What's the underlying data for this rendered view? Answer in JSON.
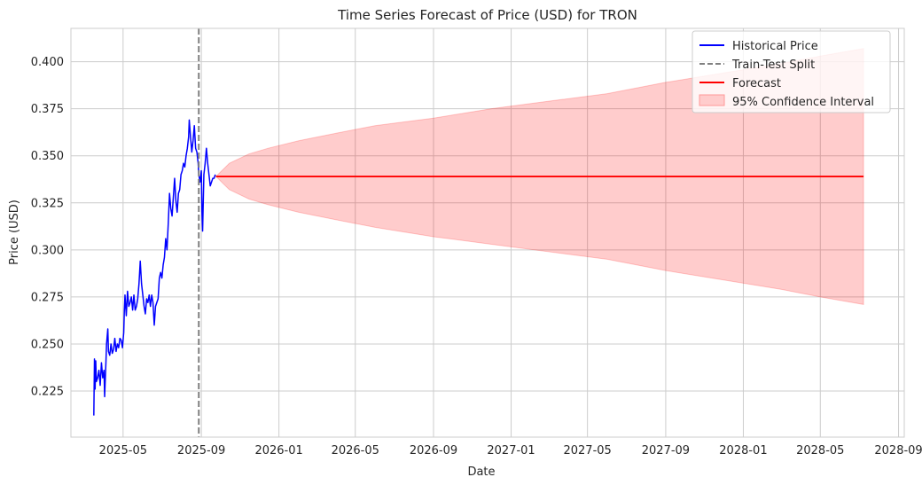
{
  "chart_data": {
    "type": "line",
    "title": "Time Series Forecast of Price (USD) for TRON",
    "xlabel": "Date",
    "ylabel": "Price (USD)",
    "grid": true,
    "legend_position": "top-right",
    "xlim": [
      "2025-02-08",
      "2028-09-10"
    ],
    "ylim": [
      0.2005,
      0.4177
    ],
    "x_ticks": [
      "2025-05-01",
      "2025-09-01",
      "2026-01-01",
      "2026-05-01",
      "2026-09-01",
      "2027-01-01",
      "2027-05-01",
      "2027-09-01",
      "2028-01-01",
      "2028-05-01",
      "2028-09-01"
    ],
    "x_tick_labels": [
      "2025-05",
      "2025-09",
      "2026-01",
      "2026-05",
      "2026-09",
      "2027-01",
      "2027-05",
      "2027-09",
      "2028-01",
      "2028-05",
      "2028-09"
    ],
    "y_ticks": [
      0.225,
      0.25,
      0.275,
      0.3,
      0.325,
      0.35,
      0.375,
      0.4
    ],
    "y_tick_labels": [
      "0.225",
      "0.250",
      "0.275",
      "0.300",
      "0.325",
      "0.350",
      "0.375",
      "0.400"
    ],
    "train_test_split": "2025-08-28",
    "series": [
      {
        "name": "Historical Price",
        "color": "#0000ff",
        "style": "solid",
        "points": [
          [
            "2025-03-16",
            0.212
          ],
          [
            "2025-03-17",
            0.242
          ],
          [
            "2025-03-18",
            0.226
          ],
          [
            "2025-03-19",
            0.241
          ],
          [
            "2025-03-20",
            0.23
          ],
          [
            "2025-03-22",
            0.232
          ],
          [
            "2025-03-24",
            0.236
          ],
          [
            "2025-03-26",
            0.228
          ],
          [
            "2025-03-28",
            0.24
          ],
          [
            "2025-03-30",
            0.232
          ],
          [
            "2025-04-01",
            0.236
          ],
          [
            "2025-04-02",
            0.222
          ],
          [
            "2025-04-04",
            0.24
          ],
          [
            "2025-04-05",
            0.25
          ],
          [
            "2025-04-07",
            0.258
          ],
          [
            "2025-04-08",
            0.246
          ],
          [
            "2025-04-10",
            0.244
          ],
          [
            "2025-04-12",
            0.25
          ],
          [
            "2025-04-14",
            0.245
          ],
          [
            "2025-04-16",
            0.247
          ],
          [
            "2025-04-18",
            0.253
          ],
          [
            "2025-04-20",
            0.246
          ],
          [
            "2025-04-22",
            0.25
          ],
          [
            "2025-04-24",
            0.248
          ],
          [
            "2025-04-26",
            0.253
          ],
          [
            "2025-04-28",
            0.252
          ],
          [
            "2025-04-30",
            0.248
          ],
          [
            "2025-05-02",
            0.256
          ],
          [
            "2025-05-03",
            0.268
          ],
          [
            "2025-05-04",
            0.276
          ],
          [
            "2025-05-06",
            0.265
          ],
          [
            "2025-05-08",
            0.278
          ],
          [
            "2025-05-10",
            0.27
          ],
          [
            "2025-05-12",
            0.272
          ],
          [
            "2025-05-14",
            0.275
          ],
          [
            "2025-05-16",
            0.268
          ],
          [
            "2025-05-18",
            0.276
          ],
          [
            "2025-05-20",
            0.268
          ],
          [
            "2025-05-22",
            0.27
          ],
          [
            "2025-05-24",
            0.274
          ],
          [
            "2025-05-26",
            0.282
          ],
          [
            "2025-05-28",
            0.294
          ],
          [
            "2025-05-30",
            0.282
          ],
          [
            "2025-06-01",
            0.276
          ],
          [
            "2025-06-03",
            0.27
          ],
          [
            "2025-06-05",
            0.266
          ],
          [
            "2025-06-07",
            0.274
          ],
          [
            "2025-06-09",
            0.272
          ],
          [
            "2025-06-11",
            0.276
          ],
          [
            "2025-06-13",
            0.27
          ],
          [
            "2025-06-15",
            0.276
          ],
          [
            "2025-06-17",
            0.272
          ],
          [
            "2025-06-19",
            0.26
          ],
          [
            "2025-06-21",
            0.27
          ],
          [
            "2025-06-23",
            0.272
          ],
          [
            "2025-06-25",
            0.274
          ],
          [
            "2025-06-27",
            0.285
          ],
          [
            "2025-06-29",
            0.288
          ],
          [
            "2025-07-01",
            0.285
          ],
          [
            "2025-07-03",
            0.292
          ],
          [
            "2025-07-05",
            0.296
          ],
          [
            "2025-07-07",
            0.306
          ],
          [
            "2025-07-09",
            0.3
          ],
          [
            "2025-07-11",
            0.314
          ],
          [
            "2025-07-13",
            0.33
          ],
          [
            "2025-07-15",
            0.322
          ],
          [
            "2025-07-17",
            0.318
          ],
          [
            "2025-07-19",
            0.328
          ],
          [
            "2025-07-21",
            0.338
          ],
          [
            "2025-07-23",
            0.326
          ],
          [
            "2025-07-25",
            0.32
          ],
          [
            "2025-07-27",
            0.33
          ],
          [
            "2025-07-29",
            0.332
          ],
          [
            "2025-07-31",
            0.34
          ],
          [
            "2025-08-02",
            0.342
          ],
          [
            "2025-08-04",
            0.346
          ],
          [
            "2025-08-06",
            0.344
          ],
          [
            "2025-08-08",
            0.35
          ],
          [
            "2025-08-10",
            0.354
          ],
          [
            "2025-08-12",
            0.36
          ],
          [
            "2025-08-13",
            0.369
          ],
          [
            "2025-08-15",
            0.36
          ],
          [
            "2025-08-17",
            0.352
          ],
          [
            "2025-08-19",
            0.358
          ],
          [
            "2025-08-21",
            0.366
          ],
          [
            "2025-08-23",
            0.354
          ],
          [
            "2025-08-25",
            0.352
          ],
          [
            "2025-08-27",
            0.346
          ],
          [
            "2025-08-28",
            0.34
          ],
          [
            "2025-08-30",
            0.336
          ],
          [
            "2025-09-01",
            0.342
          ],
          [
            "2025-09-02",
            0.32
          ],
          [
            "2025-09-03",
            0.31
          ],
          [
            "2025-09-05",
            0.34
          ],
          [
            "2025-09-07",
            0.346
          ],
          [
            "2025-09-09",
            0.354
          ],
          [
            "2025-09-11",
            0.346
          ],
          [
            "2025-09-13",
            0.34
          ],
          [
            "2025-09-15",
            0.334
          ],
          [
            "2025-09-17",
            0.336
          ],
          [
            "2025-09-19",
            0.338
          ],
          [
            "2025-09-21",
            0.338
          ],
          [
            "2025-09-23",
            0.34
          ]
        ]
      },
      {
        "name": "Train-Test Split",
        "color": "#808080",
        "style": "dashed"
      },
      {
        "name": "Forecast",
        "color": "#ff0000",
        "style": "solid",
        "start": "2025-09-24",
        "end": "2028-07-08",
        "value": 0.339
      },
      {
        "name": "95% Confidence Interval",
        "color": "#ffcccc",
        "style": "fill",
        "band": [
          [
            "2025-09-24",
            0.339,
            0.339
          ],
          [
            "2025-10-15",
            0.332,
            0.346
          ],
          [
            "2025-11-15",
            0.327,
            0.351
          ],
          [
            "2025-12-15",
            0.324,
            0.354
          ],
          [
            "2026-02-01",
            0.32,
            0.358
          ],
          [
            "2026-04-01",
            0.316,
            0.362
          ],
          [
            "2026-06-01",
            0.312,
            0.366
          ],
          [
            "2026-09-01",
            0.307,
            0.37
          ],
          [
            "2026-12-01",
            0.303,
            0.375
          ],
          [
            "2027-03-01",
            0.299,
            0.379
          ],
          [
            "2027-06-01",
            0.295,
            0.383
          ],
          [
            "2027-09-01",
            0.289,
            0.389
          ],
          [
            "2027-12-01",
            0.284,
            0.394
          ],
          [
            "2028-03-01",
            0.279,
            0.399
          ],
          [
            "2028-05-01",
            0.275,
            0.403
          ],
          [
            "2028-07-08",
            0.271,
            0.407
          ]
        ]
      }
    ]
  }
}
